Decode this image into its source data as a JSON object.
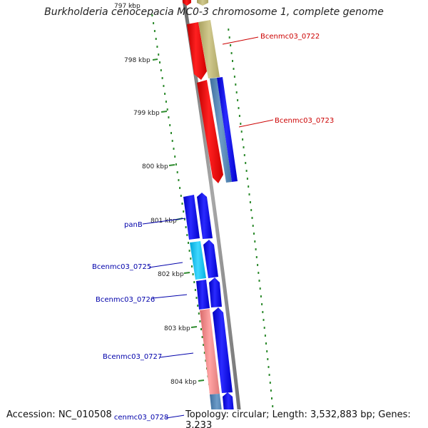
{
  "title": "Burkholderia cenocepacia MC0-3 chromosome 1, complete genome",
  "footer": {
    "accession": "Accession: NC_010508",
    "topology": "Topology: circular; Length: 3,532,883 bp; Genes: 3,233"
  },
  "colors": {
    "backbone": "#808080",
    "tick": "#2e8b2e",
    "red_label": "#cc0000",
    "blue_label": "#0000aa"
  },
  "ticks": [
    "797 kbp",
    "798 kbp",
    "799 kbp",
    "800 kbp",
    "801 kbp",
    "802 kbp",
    "803 kbp",
    "804 kbp"
  ],
  "gene_labels": {
    "bcenmc03_0722": "Bcenmc03_0722",
    "bcenmc03_0723": "Bcenmc03_0723",
    "panb": "panB",
    "bcenmc03_0725": "Bcenmc03_0725",
    "bcenmc03_0726": "Bcenmc03_0726",
    "bcenmc03_0727": "Bcenmc03_0727",
    "bcenmc03_0728": "Bcenmc03_0728"
  }
}
